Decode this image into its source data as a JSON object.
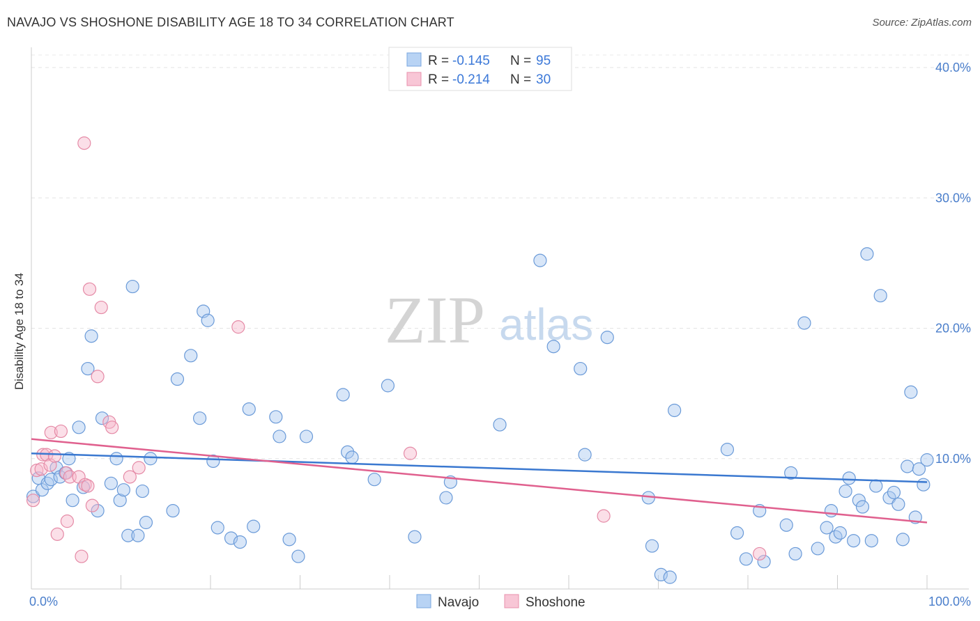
{
  "chart_data": {
    "type": "scatter",
    "title": "NAVAJO VS SHOSHONE DISABILITY AGE 18 TO 34 CORRELATION CHART",
    "source": "Source: ZipAtlas.com",
    "ylabel": "Disability Age 18 to 34",
    "xlabel": "",
    "xlim": [
      0,
      100
    ],
    "ylim": [
      0,
      40
    ],
    "x_tick_labels": [
      "0.0%",
      "100.0%"
    ],
    "y_ticks": [
      10,
      20,
      30,
      40
    ],
    "y_tick_labels": [
      "10.0%",
      "20.0%",
      "30.0%",
      "40.0%"
    ],
    "grid": "horizontal dashed",
    "legend_position": "top-center",
    "watermark": {
      "zip": "ZIP",
      "atlas": "atlas"
    },
    "stats": [
      {
        "r_label": "R = ",
        "r_value": "-0.145",
        "n_label": "N = ",
        "n_value": "95"
      },
      {
        "r_label": "R = ",
        "r_value": "-0.214",
        "n_label": "N = ",
        "n_value": "30"
      }
    ],
    "series": [
      {
        "name": "Navajo",
        "color": "#a8c8f0",
        "stroke": "#6a9ad8",
        "line_color": "#3a78d0",
        "trend": {
          "x": [
            0,
            100
          ],
          "y": [
            10.4,
            8.2
          ]
        },
        "points": [
          [
            0.2,
            7.1
          ],
          [
            0.8,
            8.5
          ],
          [
            1.2,
            7.6
          ],
          [
            1.8,
            8.1
          ],
          [
            2.2,
            8.4
          ],
          [
            2.8,
            9.3
          ],
          [
            3.2,
            8.6
          ],
          [
            3.8,
            8.9
          ],
          [
            4.2,
            10.0
          ],
          [
            4.6,
            6.8
          ],
          [
            5.3,
            12.4
          ],
          [
            5.8,
            7.8
          ],
          [
            6.3,
            16.9
          ],
          [
            6.7,
            19.4
          ],
          [
            7.4,
            6.0
          ],
          [
            7.9,
            13.1
          ],
          [
            8.9,
            8.1
          ],
          [
            9.5,
            10.0
          ],
          [
            9.9,
            6.8
          ],
          [
            10.3,
            7.6
          ],
          [
            10.8,
            4.1
          ],
          [
            11.3,
            23.2
          ],
          [
            11.9,
            4.1
          ],
          [
            12.4,
            7.5
          ],
          [
            12.8,
            5.1
          ],
          [
            13.3,
            10.0
          ],
          [
            15.8,
            6.0
          ],
          [
            16.3,
            16.1
          ],
          [
            17.8,
            17.9
          ],
          [
            18.8,
            13.1
          ],
          [
            19.2,
            21.3
          ],
          [
            19.7,
            20.6
          ],
          [
            20.3,
            9.8
          ],
          [
            20.8,
            4.7
          ],
          [
            22.3,
            3.9
          ],
          [
            23.3,
            3.6
          ],
          [
            24.3,
            13.8
          ],
          [
            24.8,
            4.8
          ],
          [
            27.3,
            13.2
          ],
          [
            27.7,
            11.7
          ],
          [
            28.8,
            3.8
          ],
          [
            29.8,
            2.5
          ],
          [
            30.7,
            11.7
          ],
          [
            34.8,
            14.9
          ],
          [
            35.3,
            10.5
          ],
          [
            35.8,
            10.1
          ],
          [
            38.3,
            8.4
          ],
          [
            39.8,
            15.6
          ],
          [
            42.8,
            4.0
          ],
          [
            46.3,
            7.0
          ],
          [
            46.8,
            8.2
          ],
          [
            52.3,
            12.6
          ],
          [
            56.8,
            25.2
          ],
          [
            58.3,
            18.6
          ],
          [
            61.3,
            16.9
          ],
          [
            61.8,
            10.3
          ],
          [
            64.3,
            19.3
          ],
          [
            68.9,
            7.0
          ],
          [
            69.3,
            3.3
          ],
          [
            70.3,
            1.1
          ],
          [
            71.3,
            0.9
          ],
          [
            71.8,
            13.7
          ],
          [
            77.7,
            10.7
          ],
          [
            78.8,
            4.3
          ],
          [
            79.8,
            2.3
          ],
          [
            81.3,
            6.0
          ],
          [
            81.8,
            2.1
          ],
          [
            84.3,
            4.9
          ],
          [
            84.8,
            8.9
          ],
          [
            85.3,
            2.7
          ],
          [
            86.3,
            20.4
          ],
          [
            87.8,
            3.1
          ],
          [
            88.8,
            4.7
          ],
          [
            89.3,
            6.0
          ],
          [
            89.8,
            4.0
          ],
          [
            90.3,
            4.3
          ],
          [
            90.9,
            7.5
          ],
          [
            91.3,
            8.5
          ],
          [
            91.8,
            3.7
          ],
          [
            92.4,
            6.8
          ],
          [
            92.8,
            6.3
          ],
          [
            93.3,
            25.7
          ],
          [
            93.8,
            3.7
          ],
          [
            94.3,
            7.9
          ],
          [
            94.8,
            22.5
          ],
          [
            95.8,
            7.0
          ],
          [
            96.3,
            7.4
          ],
          [
            96.8,
            6.5
          ],
          [
            97.3,
            3.8
          ],
          [
            97.8,
            9.4
          ],
          [
            98.2,
            15.1
          ],
          [
            98.7,
            5.5
          ],
          [
            99.1,
            9.2
          ],
          [
            99.6,
            8.0
          ],
          [
            100.0,
            9.9
          ]
        ]
      },
      {
        "name": "Shoshone",
        "color": "#f6b8cb",
        "stroke": "#e58aa6",
        "line_color": "#e0608e",
        "trend": {
          "x": [
            0,
            100
          ],
          "y": [
            11.5,
            5.1
          ]
        },
        "points": [
          [
            0.2,
            6.8
          ],
          [
            0.6,
            9.1
          ],
          [
            1.1,
            9.2
          ],
          [
            1.3,
            10.3
          ],
          [
            1.7,
            10.3
          ],
          [
            2.1,
            9.5
          ],
          [
            2.2,
            12.0
          ],
          [
            2.6,
            10.2
          ],
          [
            2.9,
            4.2
          ],
          [
            3.3,
            12.1
          ],
          [
            3.9,
            8.9
          ],
          [
            4.0,
            5.2
          ],
          [
            4.3,
            8.6
          ],
          [
            5.3,
            8.6
          ],
          [
            5.6,
            2.5
          ],
          [
            5.9,
            34.2
          ],
          [
            6.0,
            8.0
          ],
          [
            6.3,
            7.9
          ],
          [
            6.5,
            23.0
          ],
          [
            6.8,
            6.4
          ],
          [
            7.4,
            16.3
          ],
          [
            7.8,
            21.6
          ],
          [
            8.7,
            12.8
          ],
          [
            9.0,
            12.4
          ],
          [
            11.0,
            8.6
          ],
          [
            12.0,
            9.3
          ],
          [
            23.1,
            20.1
          ],
          [
            42.3,
            10.4
          ],
          [
            63.9,
            5.6
          ],
          [
            81.3,
            2.7
          ]
        ]
      }
    ]
  }
}
